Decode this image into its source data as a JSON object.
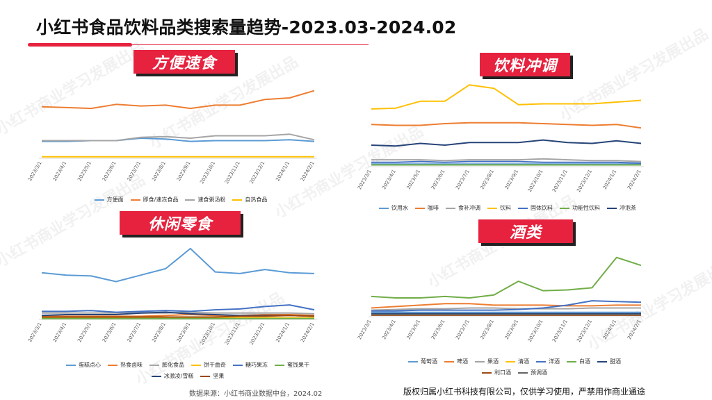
{
  "page": {
    "title": "小红书食品饮料品类搜索量趋势-2023.03-2024.02",
    "source": "数据来源：小红书商业数据中台，2024.02",
    "copyright": "版权归属小红书科技有限公司，仅供学习使用，严禁用作商业通途",
    "watermark": "小红书商业学习发展出品",
    "accent_color": "#e6223e"
  },
  "chart_data": [
    {
      "id": "instant",
      "label": "方便速食",
      "type": "line",
      "categories": [
        "2023/3/1",
        "2023/4/1",
        "2023/5/1",
        "2023/6/1",
        "2023/7/1",
        "2023/8/1",
        "2023/9/1",
        "2023/10/1",
        "2023/11/1",
        "2023/12/1",
        "2024/1/1",
        "2024/2/1"
      ],
      "ylim": [
        0,
        100
      ],
      "grid": false,
      "legend": "bottom",
      "series": [
        {
          "name": "方便面",
          "color": "#5b9bd5",
          "values": [
            21,
            21,
            22,
            22,
            25,
            24,
            21,
            22,
            22,
            22,
            23,
            21
          ]
        },
        {
          "name": "即食/速冻食品",
          "color": "#ed7d31",
          "values": [
            64,
            63,
            62,
            67,
            65,
            66,
            62,
            66,
            66,
            73,
            75,
            84
          ]
        },
        {
          "name": "速食粥汤粉",
          "color": "#a5a5a5",
          "values": [
            22,
            22,
            22,
            22,
            26,
            27,
            25,
            28,
            28,
            28,
            30,
            23
          ]
        },
        {
          "name": "自热食品",
          "color": "#ffc000",
          "values": [
            2,
            2,
            2,
            2,
            2,
            2,
            2,
            2,
            2,
            2,
            2,
            2
          ]
        }
      ]
    },
    {
      "id": "drinks",
      "label": "饮料冲调",
      "type": "line",
      "categories": [
        "2023/3/1",
        "2023/4/1",
        "2023/5/1",
        "2023/6/1",
        "2023/7/1",
        "2023/8/1",
        "2023/9/1",
        "2023/10/1",
        "2023/11/1",
        "2023/12/1",
        "2024/1/1",
        "2024/2/1"
      ],
      "ylim": [
        0,
        100
      ],
      "grid": false,
      "legend": "bottom",
      "series": [
        {
          "name": "饮用水",
          "color": "#5b9bd5",
          "values": [
            3,
            3,
            3,
            3,
            3,
            3,
            3,
            3,
            3,
            3,
            3,
            3
          ]
        },
        {
          "name": "咖啡",
          "color": "#ed7d31",
          "values": [
            49,
            48,
            48,
            50,
            51,
            51,
            51,
            50,
            49,
            48,
            49,
            45
          ]
        },
        {
          "name": "食补冲调",
          "color": "#a5a5a5",
          "values": [
            8,
            8,
            8,
            7,
            8,
            8,
            8,
            9,
            8,
            7,
            7,
            6
          ]
        },
        {
          "name": "饮料",
          "color": "#ffc000",
          "values": [
            67,
            68,
            76,
            76,
            95,
            91,
            72,
            73,
            73,
            73,
            75,
            77
          ]
        },
        {
          "name": "固体饮料",
          "color": "#4472c4",
          "values": [
            5,
            5,
            6,
            5,
            6,
            6,
            6,
            5,
            5,
            5,
            5,
            4
          ]
        },
        {
          "name": "功能性饮料",
          "color": "#70ad47",
          "values": [
            2,
            2,
            2,
            2,
            2,
            2,
            2,
            2,
            2,
            2,
            2,
            2
          ]
        },
        {
          "name": "冲泡茶",
          "color": "#264478",
          "values": [
            25,
            24,
            27,
            25,
            28,
            28,
            28,
            31,
            28,
            27,
            30,
            27
          ]
        }
      ]
    },
    {
      "id": "snacks",
      "label": "休闲零食",
      "type": "line",
      "categories": [
        "2023/3/1",
        "2023/4/1",
        "2023/5/1",
        "2023/6/1",
        "2023/7/1",
        "2023/8/1",
        "2023/9/1",
        "2023/10/1",
        "2023/11/1",
        "2023/12/1",
        "2024/1/1",
        "2024/2/1"
      ],
      "ylim": [
        0,
        100
      ],
      "grid": false,
      "legend": "bottom",
      "series": [
        {
          "name": "蛋糕点心",
          "color": "#5b9bd5",
          "values": [
            58,
            55,
            54,
            47,
            55,
            63,
            88,
            59,
            57,
            62,
            58,
            57
          ]
        },
        {
          "name": "熟食卤味",
          "color": "#ed7d31",
          "values": [
            4,
            4,
            4,
            4,
            4,
            5,
            6,
            5,
            5,
            6,
            6,
            5
          ]
        },
        {
          "name": "膨化食品",
          "color": "#a5a5a5",
          "values": [
            8,
            8,
            8,
            8,
            8,
            8,
            9,
            8,
            8,
            8,
            8,
            7
          ]
        },
        {
          "name": "饼干曲奇",
          "color": "#ffc000",
          "values": [
            2,
            2,
            2,
            2,
            2,
            2,
            2,
            2,
            2,
            2,
            2,
            2
          ]
        },
        {
          "name": "糖巧果冻",
          "color": "#4472c4",
          "values": [
            10,
            10,
            11,
            9,
            10,
            11,
            10,
            12,
            13,
            16,
            18,
            12
          ]
        },
        {
          "name": "蜜饯果干",
          "color": "#70ad47",
          "values": [
            1,
            1,
            1,
            1,
            1,
            1,
            1,
            1,
            1,
            1,
            1,
            1
          ]
        },
        {
          "name": "冰激凌/雪糕",
          "color": "#264478",
          "values": [
            5,
            6,
            6,
            6,
            8,
            9,
            7,
            6,
            5,
            5,
            5,
            4
          ]
        },
        {
          "name": "坚果",
          "color": "#9e480e",
          "values": [
            3,
            3,
            3,
            3,
            3,
            3,
            3,
            3,
            4,
            4,
            5,
            4
          ]
        }
      ]
    },
    {
      "id": "liquor",
      "label": "酒类",
      "type": "line",
      "categories": [
        "2023/3/1",
        "2023/4/1",
        "2023/5/1",
        "2023/6/1",
        "2023/7/1",
        "2023/8/1",
        "2023/9/1",
        "2023/10/1",
        "2023/11/1",
        "2023/12/1",
        "2024/1/1",
        "2024/2/1"
      ],
      "ylim": [
        0,
        100
      ],
      "grid": false,
      "legend": "bottom",
      "series": [
        {
          "name": "葡萄酒",
          "color": "#5b9bd5",
          "values": [
            6,
            6,
            6,
            6,
            6,
            6,
            6,
            6,
            6,
            6,
            6,
            6
          ]
        },
        {
          "name": "啤酒",
          "color": "#ed7d31",
          "values": [
            12,
            14,
            16,
            18,
            18,
            16,
            16,
            16,
            15,
            15,
            16,
            16
          ]
        },
        {
          "name": "果酒",
          "color": "#a5a5a5",
          "values": [
            9,
            10,
            11,
            11,
            12,
            12,
            11,
            11,
            11,
            12,
            12,
            12
          ]
        },
        {
          "name": "清酒",
          "color": "#ffc000",
          "values": [
            3,
            3,
            3,
            3,
            3,
            3,
            3,
            3,
            3,
            3,
            3,
            3
          ]
        },
        {
          "name": "洋酒",
          "color": "#4472c4",
          "values": [
            8,
            8,
            9,
            9,
            9,
            9,
            10,
            12,
            16,
            22,
            21,
            20
          ]
        },
        {
          "name": "白酒",
          "color": "#70ad47",
          "values": [
            28,
            26,
            26,
            28,
            26,
            30,
            49,
            36,
            37,
            40,
            82,
            71
          ]
        },
        {
          "name": "甜酒",
          "color": "#264478",
          "values": [
            4,
            4,
            4,
            4,
            4,
            4,
            4,
            4,
            4,
            4,
            4,
            4
          ]
        },
        {
          "name": "利口酒",
          "color": "#9e480e",
          "values": [
            2,
            2,
            2,
            2,
            2,
            2,
            2,
            2,
            2,
            2,
            2,
            2
          ]
        },
        {
          "name": "预调酒",
          "color": "#636363",
          "values": [
            3,
            3,
            3,
            3,
            3,
            3,
            3,
            3,
            3,
            3,
            3,
            3
          ]
        }
      ]
    }
  ]
}
